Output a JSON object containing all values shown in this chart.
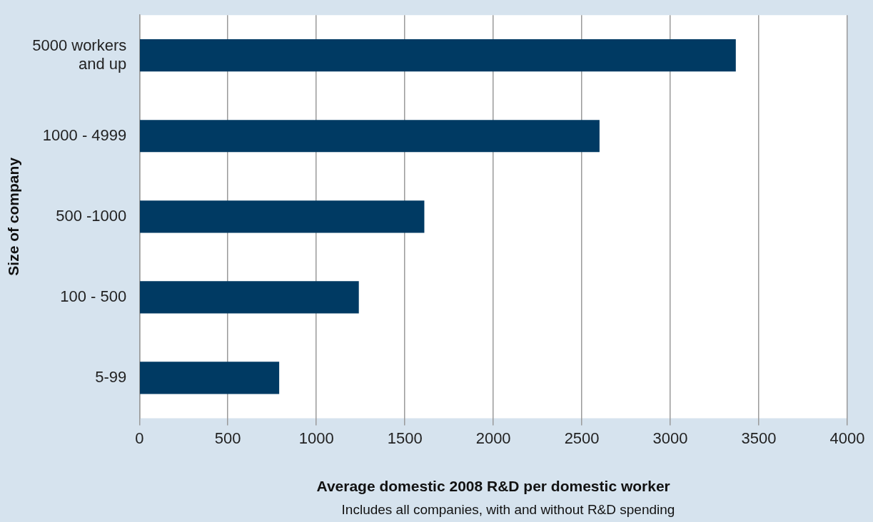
{
  "chart_data": {
    "type": "bar",
    "orientation": "horizontal",
    "categories": [
      "5000 workers and up",
      "1000 - 4999",
      "500 -1000",
      "100 - 500",
      "5-99"
    ],
    "values": [
      3370,
      2600,
      1610,
      1240,
      790
    ],
    "color": "#003a63",
    "xlabel": "Average domestic 2008 R&D per domestic worker",
    "ylabel": "Size of company",
    "annotations": [
      "Includes all companies, with and without R&D spending"
    ],
    "xlim": [
      0,
      4000
    ],
    "xticks": [
      0,
      500,
      1000,
      1500,
      2000,
      2500,
      3000,
      3500,
      4000
    ],
    "grid": "x",
    "legend": false
  }
}
